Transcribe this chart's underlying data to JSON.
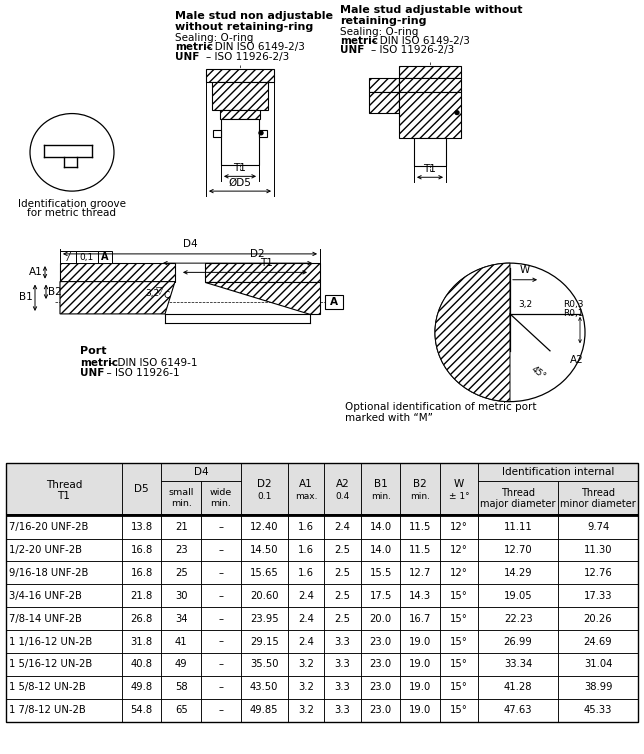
{
  "rows": [
    [
      "7/16-20 UNF-2B",
      "13.8",
      "21",
      "–",
      "12.40",
      "1.6",
      "2.4",
      "14.0",
      "11.5",
      "12°",
      "11.11",
      "9.74"
    ],
    [
      "1/2-20 UNF-2B",
      "16.8",
      "23",
      "–",
      "14.50",
      "1.6",
      "2.5",
      "14.0",
      "11.5",
      "12°",
      "12.70",
      "11.30"
    ],
    [
      "9/16-18 UNF-2B",
      "16.8",
      "25",
      "–",
      "15.65",
      "1.6",
      "2.5",
      "15.5",
      "12.7",
      "12°",
      "14.29",
      "12.76"
    ],
    [
      "3/4-16 UNF-2B",
      "21.8",
      "30",
      "–",
      "20.60",
      "2.4",
      "2.5",
      "17.5",
      "14.3",
      "15°",
      "19.05",
      "17.33"
    ],
    [
      "7/8-14 UNF-2B",
      "26.8",
      "34",
      "–",
      "23.95",
      "2.4",
      "2.5",
      "20.0",
      "16.7",
      "15°",
      "22.23",
      "20.26"
    ],
    [
      "1 1/16-12 UN-2B",
      "31.8",
      "41",
      "–",
      "29.15",
      "2.4",
      "3.3",
      "23.0",
      "19.0",
      "15°",
      "26.99",
      "24.69"
    ],
    [
      "1 5/16-12 UN-2B",
      "40.8",
      "49",
      "–",
      "35.50",
      "3.2",
      "3.3",
      "23.0",
      "19.0",
      "15°",
      "33.34",
      "31.04"
    ],
    [
      "1 5/8-12 UN-2B",
      "49.8",
      "58",
      "–",
      "43.50",
      "3.2",
      "3.3",
      "23.0",
      "19.0",
      "15°",
      "41.28",
      "38.99"
    ],
    [
      "1 7/8-12 UN-2B",
      "54.8",
      "65",
      "–",
      "49.85",
      "3.2",
      "3.3",
      "23.0",
      "19.0",
      "15°",
      "47.63",
      "45.33"
    ]
  ],
  "col_widths": [
    1.52,
    0.52,
    0.52,
    0.52,
    0.62,
    0.48,
    0.48,
    0.52,
    0.52,
    0.5,
    1.05,
    1.05
  ],
  "bg_color_header": "#e0e0e0",
  "bg_color_row": "#ffffff",
  "drawing_bg": "#ffffff",
  "text1_title1": "Male stud non adjustable",
  "text1_title2": "without retaining-ring",
  "text1_seal": "Sealing: O-ring",
  "text1_metric": "metric",
  "text1_metric2": " – DIN ISO 6149-2/3",
  "text1_unf": "UNF",
  "text1_unf2": "    – ISO 11926-2/3",
  "text2_title1": "Male stud adjustable without",
  "text2_title2": "retaining-ring",
  "text2_seal": "Sealing: O-ring",
  "text2_metric": "metric",
  "text2_metric2": " – DIN ISO 6149-2/3",
  "text2_unf": "UNF",
  "text2_unf2": "    – ISO 11926-2/3",
  "id_groove_line1": "Identification groove",
  "id_groove_line2": "for metric thread",
  "port_title": "Port",
  "port_metric": "metric",
  "port_metric2": "– DIN ISO 6149-1",
  "port_unf": "UNF",
  "port_unf2": "  – ISO 11926-1",
  "opt_id_line1": "Optional identification of metric port",
  "opt_id_line2": "marked with “M”"
}
